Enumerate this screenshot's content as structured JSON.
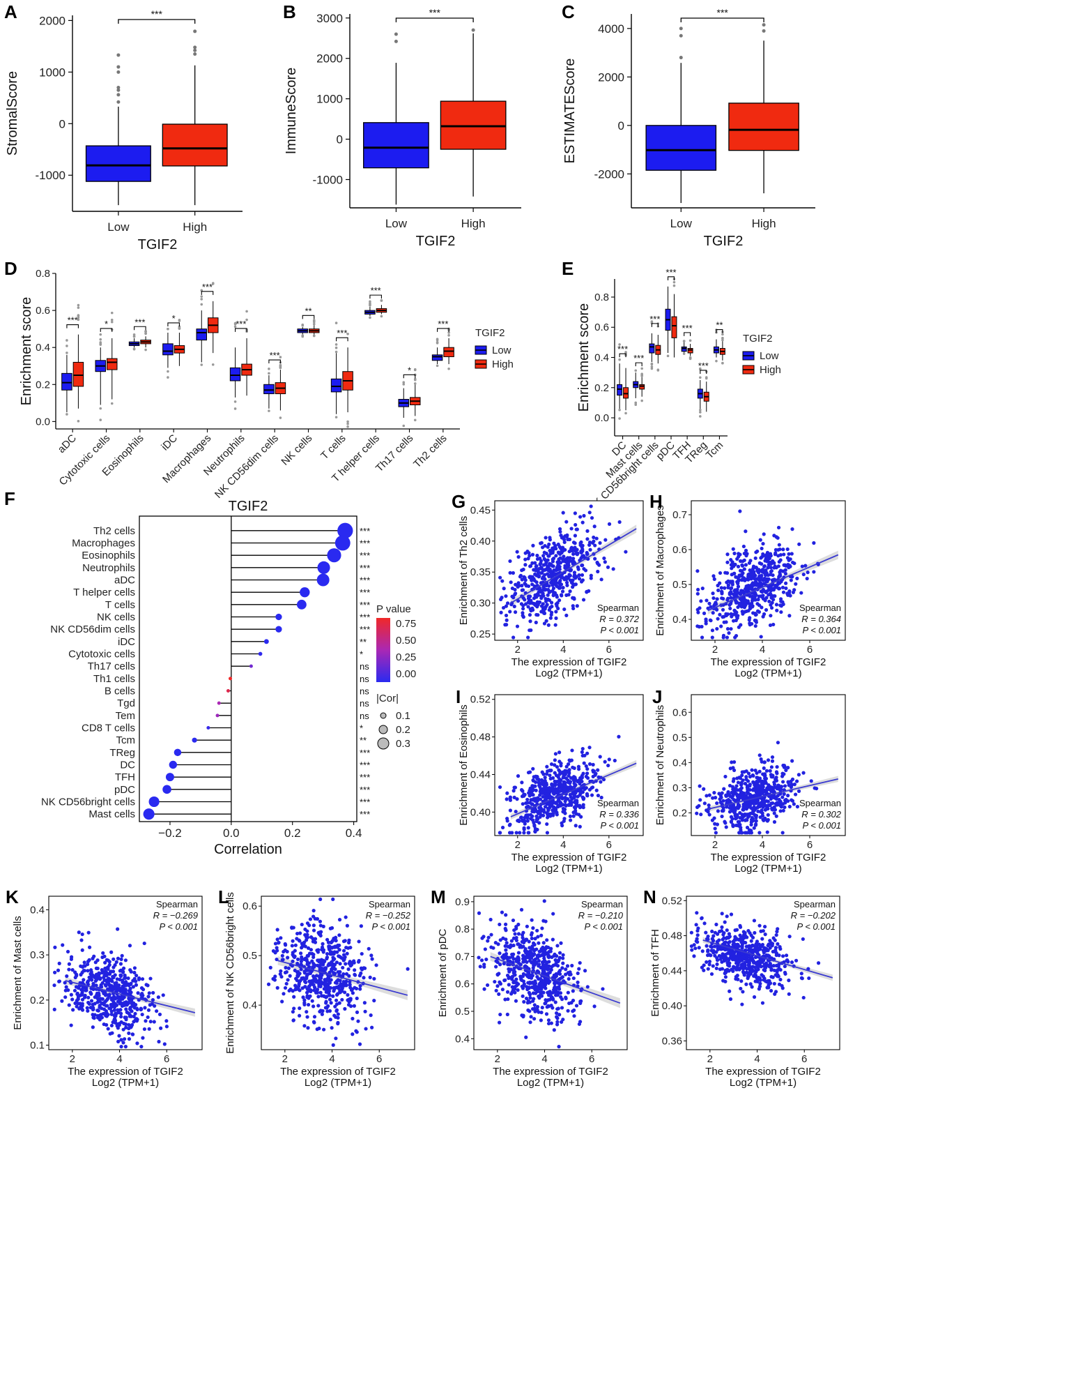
{
  "colors": {
    "low": "#1c1cf0",
    "high": "#f02a10",
    "scatter": "#2222e0",
    "fit": "#3a3ad0",
    "band": "#d4d4d4"
  },
  "chart_data": [
    {
      "id": "A",
      "type": "box",
      "letter": "A",
      "xlabel": "TGIF2",
      "ylabel": "StromalScore",
      "categories": [
        "Low",
        "High"
      ],
      "sig": "***",
      "ylim": [
        -1700,
        2100
      ],
      "yticks": [
        -1000,
        0,
        1000,
        2000
      ],
      "boxes": [
        {
          "min": -1580,
          "q1": -1120,
          "med": -810,
          "q3": -430,
          "max": 330,
          "out": [
            420,
            560,
            650,
            700,
            1000,
            1100,
            1330
          ]
        },
        {
          "min": -1580,
          "q1": -820,
          "med": -480,
          "q3": -10,
          "max": 1130,
          "out": [
            1350,
            1420,
            1480,
            1790
          ]
        }
      ]
    },
    {
      "id": "B",
      "type": "box",
      "letter": "B",
      "xlabel": "TGIF2",
      "ylabel": "ImmuneScore",
      "categories": [
        "Low",
        "High"
      ],
      "sig": "***",
      "ylim": [
        -1700,
        3100
      ],
      "yticks": [
        -1000,
        0,
        1000,
        2000,
        3000
      ],
      "boxes": [
        {
          "min": -1620,
          "q1": -710,
          "med": -210,
          "q3": 410,
          "max": 1890,
          "out": [
            2420,
            2600
          ]
        },
        {
          "min": -1420,
          "q1": -250,
          "med": 320,
          "q3": 940,
          "max": 2620,
          "out": [
            2700
          ]
        }
      ]
    },
    {
      "id": "C",
      "type": "box",
      "letter": "C",
      "xlabel": "TGIF2",
      "ylabel": "ESTIMATEScore",
      "categories": [
        "Low",
        "High"
      ],
      "sig": "***",
      "ylim": [
        -3400,
        4600
      ],
      "yticks": [
        -2000,
        0,
        2000,
        4000
      ],
      "boxes": [
        {
          "min": -3200,
          "q1": -1850,
          "med": -1020,
          "q3": 0,
          "max": 2580,
          "out": [
            2800,
            3700,
            4000
          ]
        },
        {
          "min": -2800,
          "q1": -1030,
          "med": -180,
          "q3": 920,
          "max": 3500,
          "out": [
            3900,
            4150
          ]
        }
      ]
    },
    {
      "id": "D",
      "type": "grouped-box",
      "letter": "D",
      "ylabel": "Enrichment score",
      "ylim": [
        -0.04,
        0.8
      ],
      "yticks": [
        0.0,
        0.2,
        0.4,
        0.6,
        0.8
      ],
      "legend_title": "TGIF2",
      "legend": [
        "Low",
        "High"
      ],
      "categories": [
        "aDC",
        "Cytotoxic cells",
        "Eosinophils",
        "iDC",
        "Macrophages",
        "Neutrophils",
        "NK CD56dim cells",
        "NK cells",
        "T cells",
        "T helper cells",
        "Th17 cells",
        "Th2 cells"
      ],
      "sig": [
        "***",
        "*",
        "***",
        "*",
        "***",
        "***",
        "***",
        "**",
        "***",
        "***",
        "*",
        "***"
      ],
      "low": [
        [
          0.05,
          0.17,
          0.21,
          0.26,
          0.36
        ],
        [
          0.09,
          0.27,
          0.3,
          0.33,
          0.4
        ],
        [
          0.4,
          0.41,
          0.42,
          0.43,
          0.45
        ],
        [
          0.29,
          0.36,
          0.38,
          0.42,
          0.48
        ],
        [
          0.32,
          0.44,
          0.48,
          0.5,
          0.6
        ],
        [
          0.13,
          0.22,
          0.25,
          0.29,
          0.4
        ],
        [
          0.07,
          0.15,
          0.17,
          0.2,
          0.25
        ],
        [
          0.47,
          0.48,
          0.49,
          0.5,
          0.51
        ],
        [
          0.04,
          0.16,
          0.19,
          0.23,
          0.37
        ],
        [
          0.57,
          0.58,
          0.59,
          0.6,
          0.62
        ],
        [
          0.02,
          0.08,
          0.1,
          0.12,
          0.18
        ],
        [
          0.31,
          0.33,
          0.35,
          0.36,
          0.4
        ]
      ],
      "high": [
        [
          0.07,
          0.19,
          0.25,
          0.32,
          0.47
        ],
        [
          0.12,
          0.28,
          0.32,
          0.34,
          0.45
        ],
        [
          0.4,
          0.42,
          0.43,
          0.44,
          0.46
        ],
        [
          0.3,
          0.37,
          0.39,
          0.41,
          0.48
        ],
        [
          0.37,
          0.48,
          0.52,
          0.56,
          0.65
        ],
        [
          0.14,
          0.25,
          0.28,
          0.31,
          0.45
        ],
        [
          0.06,
          0.15,
          0.18,
          0.21,
          0.28
        ],
        [
          0.47,
          0.48,
          0.49,
          0.5,
          0.52
        ],
        [
          0.05,
          0.17,
          0.22,
          0.27,
          0.4
        ],
        [
          0.58,
          0.59,
          0.6,
          0.61,
          0.63
        ],
        [
          0.03,
          0.09,
          0.11,
          0.13,
          0.2
        ],
        [
          0.31,
          0.35,
          0.38,
          0.4,
          0.45
        ]
      ]
    },
    {
      "id": "E",
      "type": "grouped-box",
      "letter": "E",
      "ylabel": "Enrichment score",
      "ylim": [
        -0.12,
        0.92
      ],
      "yticks": [
        0.0,
        0.2,
        0.4,
        0.6,
        0.8
      ],
      "legend_title": "TGIF2",
      "legend": [
        "Low",
        "High"
      ],
      "categories": [
        "DC",
        "Mast cells",
        "NK CD56bright cells",
        "pDC",
        "TFH",
        "TReg",
        "Tcm"
      ],
      "sig": [
        "***",
        "***",
        "***",
        "***",
        "***",
        "***",
        "**"
      ],
      "low": [
        [
          0.06,
          0.15,
          0.19,
          0.22,
          0.36
        ],
        [
          0.13,
          0.2,
          0.22,
          0.24,
          0.3
        ],
        [
          0.37,
          0.43,
          0.47,
          0.49,
          0.56
        ],
        [
          0.43,
          0.58,
          0.65,
          0.72,
          0.87
        ],
        [
          0.43,
          0.44,
          0.46,
          0.47,
          0.5
        ],
        [
          0.06,
          0.13,
          0.16,
          0.19,
          0.25
        ],
        [
          0.4,
          0.43,
          0.45,
          0.47,
          0.52
        ]
      ],
      "high": [
        [
          0.05,
          0.13,
          0.16,
          0.2,
          0.33
        ],
        [
          0.14,
          0.19,
          0.21,
          0.22,
          0.27
        ],
        [
          0.36,
          0.42,
          0.45,
          0.48,
          0.55
        ],
        [
          0.4,
          0.53,
          0.61,
          0.67,
          0.82
        ],
        [
          0.41,
          0.43,
          0.45,
          0.46,
          0.49
        ],
        [
          0.04,
          0.11,
          0.14,
          0.17,
          0.24
        ],
        [
          0.38,
          0.42,
          0.44,
          0.46,
          0.51
        ]
      ]
    },
    {
      "id": "F",
      "type": "lollipop",
      "letter": "F",
      "title": "TGIF2",
      "xlabel": "Correlation",
      "xlim": [
        -0.3,
        0.41
      ],
      "xticks": [
        -0.2,
        0.0,
        0.2,
        0.4
      ],
      "legend_p_title": "P value",
      "legend_p_ticks": [
        "0.75",
        "0.50",
        "0.25",
        "0.00"
      ],
      "legend_size_title": "|Cor|",
      "legend_size": [
        "0.1",
        "0.2",
        "0.3"
      ],
      "items": [
        {
          "name": "Th2 cells",
          "cor": 0.372,
          "p": 0.0,
          "sig": "***"
        },
        {
          "name": "Macrophages",
          "cor": 0.364,
          "p": 0.0,
          "sig": "***"
        },
        {
          "name": "Eosinophils",
          "cor": 0.336,
          "p": 0.0,
          "sig": "***"
        },
        {
          "name": "Neutrophils",
          "cor": 0.302,
          "p": 0.0,
          "sig": "***"
        },
        {
          "name": "aDC",
          "cor": 0.3,
          "p": 0.0,
          "sig": "***"
        },
        {
          "name": "T helper cells",
          "cor": 0.24,
          "p": 0.0,
          "sig": "***"
        },
        {
          "name": "T cells",
          "cor": 0.23,
          "p": 0.0,
          "sig": "***"
        },
        {
          "name": "NK cells",
          "cor": 0.155,
          "p": 0.0,
          "sig": "***"
        },
        {
          "name": "NK CD56dim cells",
          "cor": 0.155,
          "p": 0.0,
          "sig": "***"
        },
        {
          "name": "iDC",
          "cor": 0.115,
          "p": 0.003,
          "sig": "**"
        },
        {
          "name": "Cytotoxic cells",
          "cor": 0.095,
          "p": 0.02,
          "sig": "*"
        },
        {
          "name": "Th17 cells",
          "cor": 0.065,
          "p": 0.25,
          "sig": "ns"
        },
        {
          "name": "Th1 cells",
          "cor": -0.003,
          "p": 0.9,
          "sig": "ns"
        },
        {
          "name": "B cells",
          "cor": -0.01,
          "p": 0.78,
          "sig": "ns"
        },
        {
          "name": "Tgd",
          "cor": -0.04,
          "p": 0.45,
          "sig": "ns"
        },
        {
          "name": "Tem",
          "cor": -0.045,
          "p": 0.4,
          "sig": "ns"
        },
        {
          "name": "CD8 T cells",
          "cor": -0.075,
          "p": 0.05,
          "sig": "*"
        },
        {
          "name": "Tcm",
          "cor": -0.12,
          "p": 0.004,
          "sig": "**"
        },
        {
          "name": "TReg",
          "cor": -0.175,
          "p": 0.0,
          "sig": "***"
        },
        {
          "name": "DC",
          "cor": -0.19,
          "p": 0.0,
          "sig": "***"
        },
        {
          "name": "TFH",
          "cor": -0.2,
          "p": 0.0,
          "sig": "***"
        },
        {
          "name": "pDC",
          "cor": -0.21,
          "p": 0.0,
          "sig": "***"
        },
        {
          "name": "NK CD56bright cells",
          "cor": -0.252,
          "p": 0.0,
          "sig": "***"
        },
        {
          "name": "Mast cells",
          "cor": -0.269,
          "p": 0.0,
          "sig": "***"
        }
      ]
    },
    {
      "id": "G",
      "type": "scatter",
      "letter": "G",
      "ylabel": "Enrichment of Th2 cells",
      "ylim": [
        0.24,
        0.465
      ],
      "yticks": [
        "0.25",
        "0.30",
        "0.35",
        "0.40",
        "0.45"
      ],
      "ymean": 0.35,
      "ysd": 0.033,
      "fit": [
        0.3,
        0.42
      ],
      "r": 0.372,
      "ann_pos": "bottom-right",
      "method": "Spearman",
      "r_text": "R = 0.372",
      "p_text": "P < 0.001",
      "xlim": [
        1.0,
        7.5
      ],
      "xticks": [
        "2",
        "4",
        "6"
      ],
      "xlabel": "The expression of TGIF2",
      "xlabel2": "Log2 (TPM+1)"
    },
    {
      "id": "H",
      "type": "scatter",
      "letter": "H",
      "ylabel": "Enrichment of Macrophages",
      "ylim": [
        0.34,
        0.74
      ],
      "yticks": [
        "0.4",
        "0.5",
        "0.6",
        "0.7"
      ],
      "ymean": 0.5,
      "ysd": 0.06,
      "fit": [
        0.425,
        0.585
      ],
      "r": 0.364,
      "ann_pos": "bottom-right",
      "method": "Spearman",
      "r_text": "R = 0.364",
      "p_text": "P < 0.001",
      "xlim": [
        1.0,
        7.5
      ],
      "xticks": [
        "2",
        "4",
        "6"
      ],
      "xlabel": "The expression of TGIF2",
      "xlabel2": "Log2 (TPM+1)"
    },
    {
      "id": "I",
      "type": "scatter",
      "letter": "I",
      "ylabel": "Enrichment of Eosinophils",
      "ylim": [
        0.375,
        0.525
      ],
      "yticks": [
        "0.40",
        "0.44",
        "0.48",
        "0.52"
      ],
      "ymean": 0.42,
      "ysd": 0.017,
      "fit": [
        0.395,
        0.452
      ],
      "r": 0.336,
      "ann_pos": "bottom-right",
      "method": "Spearman",
      "r_text": "R = 0.336",
      "p_text": "P < 0.001",
      "xlim": [
        1.0,
        7.5
      ],
      "xticks": [
        "2",
        "4",
        "6"
      ],
      "xlabel": "The expression of TGIF2",
      "xlabel2": "Log2 (TPM+1)"
    },
    {
      "id": "J",
      "type": "scatter",
      "letter": "J",
      "ylabel": "Enrichment of Neutrophils",
      "ylim": [
        0.11,
        0.67
      ],
      "yticks": [
        "0.2",
        "0.3",
        "0.4",
        "0.5",
        "0.6"
      ],
      "ymean": 0.26,
      "ysd": 0.06,
      "fit": [
        0.215,
        0.335
      ],
      "r": 0.302,
      "ann_pos": "bottom-right",
      "method": "Spearman",
      "r_text": "R = 0.302",
      "p_text": "P < 0.001",
      "xlim": [
        1.0,
        7.5
      ],
      "xticks": [
        "2",
        "4",
        "6"
      ],
      "xlabel": "The expression of TGIF2",
      "xlabel2": "Log2 (TPM+1)"
    },
    {
      "id": "K",
      "type": "scatter",
      "letter": "K",
      "ylabel": "Enrichment of Mast cells",
      "ylim": [
        0.09,
        0.43
      ],
      "yticks": [
        "0.1",
        "0.2",
        "0.3",
        "0.4"
      ],
      "ymean": 0.21,
      "ysd": 0.045,
      "fit": [
        0.243,
        0.172
      ],
      "r": -0.269,
      "ann_pos": "top-right",
      "method": "Spearman",
      "r_text": "R = −0.269",
      "p_text": "P < 0.001",
      "xlim": [
        1.0,
        7.5
      ],
      "xticks": [
        "2",
        "4",
        "6"
      ],
      "xlabel": "The expression of TGIF2",
      "xlabel2": "Log2 (TPM+1)"
    },
    {
      "id": "L",
      "type": "scatter",
      "letter": "L",
      "ylabel": "Enrichment of NK CD56bright cells",
      "ylim": [
        0.31,
        0.62
      ],
      "yticks": [
        "0.4",
        "0.5",
        "0.6"
      ],
      "ymean": 0.46,
      "ysd": 0.05,
      "fit": [
        0.49,
        0.42
      ],
      "r": -0.252,
      "ann_pos": "top-right",
      "method": "Spearman",
      "r_text": "R = −0.252",
      "p_text": "P < 0.001",
      "xlim": [
        1.0,
        7.5
      ],
      "xticks": [
        "2",
        "4",
        "6"
      ],
      "xlabel": "The expression of TGIF2",
      "xlabel2": "Log2 (TPM+1)"
    },
    {
      "id": "M",
      "type": "scatter",
      "letter": "M",
      "ylabel": "Enrichment of pDC",
      "ylim": [
        0.36,
        0.92
      ],
      "yticks": [
        "0.4",
        "0.5",
        "0.6",
        "0.7",
        "0.8",
        "0.9"
      ],
      "ymean": 0.64,
      "ysd": 0.09,
      "fit": [
        0.7,
        0.53
      ],
      "r": -0.21,
      "ann_pos": "top-right",
      "method": "Spearman",
      "r_text": "R = −0.210",
      "p_text": "P < 0.001",
      "xlim": [
        1.0,
        7.5
      ],
      "xticks": [
        "2",
        "4",
        "6"
      ],
      "xlabel": "The expression of TGIF2",
      "xlabel2": "Log2 (TPM+1)"
    },
    {
      "id": "N",
      "type": "scatter",
      "letter": "N",
      "ylabel": "Enrichment of TFH",
      "ylim": [
        0.35,
        0.525
      ],
      "yticks": [
        "0.36",
        "0.40",
        "0.44",
        "0.48",
        "0.52"
      ],
      "ymean": 0.455,
      "ysd": 0.018,
      "fit": [
        0.475,
        0.432
      ],
      "r": -0.202,
      "ann_pos": "top-right",
      "method": "Spearman",
      "r_text": "R = −0.202",
      "p_text": "P < 0.001",
      "xlim": [
        1.0,
        7.5
      ],
      "xticks": [
        "2",
        "4",
        "6"
      ],
      "xlabel": "The expression of TGIF2",
      "xlabel2": "Log2 (TPM+1)"
    }
  ]
}
